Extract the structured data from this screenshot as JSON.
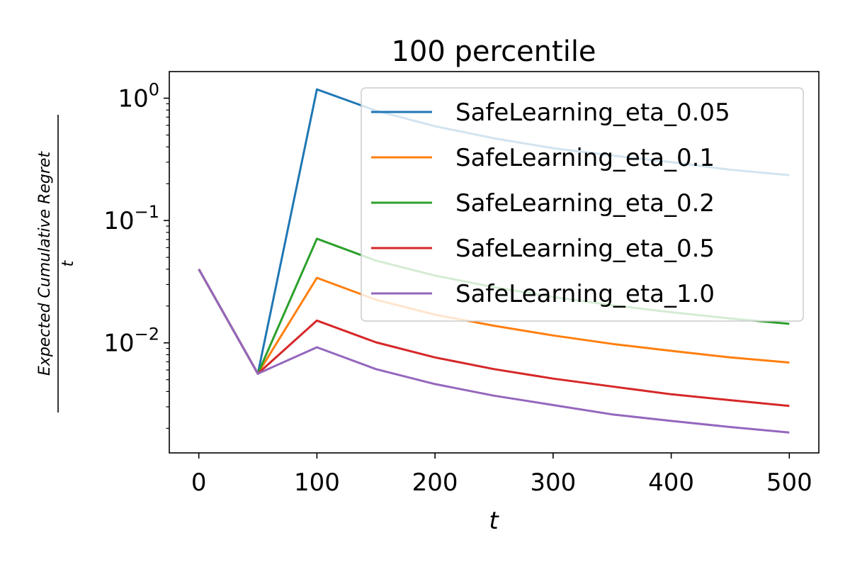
{
  "chart_data": {
    "type": "line",
    "title": "100 percentile",
    "xlabel": "t",
    "ylabel_numerator": "Expected Cumulative Regret",
    "ylabel_denominator": "t",
    "y_scale": "log",
    "xlim": [
      -25,
      525
    ],
    "ylim": [
      0.00126,
      1.65
    ],
    "x_ticks": [
      0,
      100,
      200,
      300,
      400,
      500
    ],
    "y_ticks": [
      {
        "value": 1,
        "base": "10",
        "exp": "0"
      },
      {
        "value": 0.1,
        "base": "10",
        "exp": "−1"
      },
      {
        "value": 0.01,
        "base": "10",
        "exp": "−2"
      }
    ],
    "legend_position": "upper right",
    "grid": false,
    "x": [
      0,
      50,
      100,
      150,
      200,
      250,
      300,
      350,
      400,
      450,
      500
    ],
    "series": [
      {
        "name": "SafeLearning_eta_0.05",
        "color": "#1f77b4",
        "values": [
          0.04,
          0.0056,
          1.18,
          0.79,
          0.59,
          0.47,
          0.39,
          0.34,
          0.3,
          0.26,
          0.235
        ]
      },
      {
        "name": "SafeLearning_eta_0.1",
        "color": "#ff7f0e",
        "values": [
          0.04,
          0.0056,
          0.034,
          0.0225,
          0.017,
          0.0138,
          0.0115,
          0.0098,
          0.0086,
          0.0076,
          0.0069
        ]
      },
      {
        "name": "SafeLearning_eta_0.2",
        "color": "#2ca02c",
        "values": [
          0.04,
          0.0056,
          0.071,
          0.047,
          0.0355,
          0.0285,
          0.0237,
          0.0203,
          0.0178,
          0.0158,
          0.0143
        ]
      },
      {
        "name": "SafeLearning_eta_0.5",
        "color": "#d62728",
        "values": [
          0.04,
          0.0056,
          0.0152,
          0.0101,
          0.0076,
          0.0061,
          0.0051,
          0.0044,
          0.0038,
          0.0034,
          0.00305
        ]
      },
      {
        "name": "SafeLearning_eta_1.0",
        "color": "#9467bd",
        "values": [
          0.04,
          0.0056,
          0.0092,
          0.0061,
          0.0046,
          0.0037,
          0.0031,
          0.0026,
          0.0023,
          0.00205,
          0.00185
        ]
      }
    ]
  }
}
